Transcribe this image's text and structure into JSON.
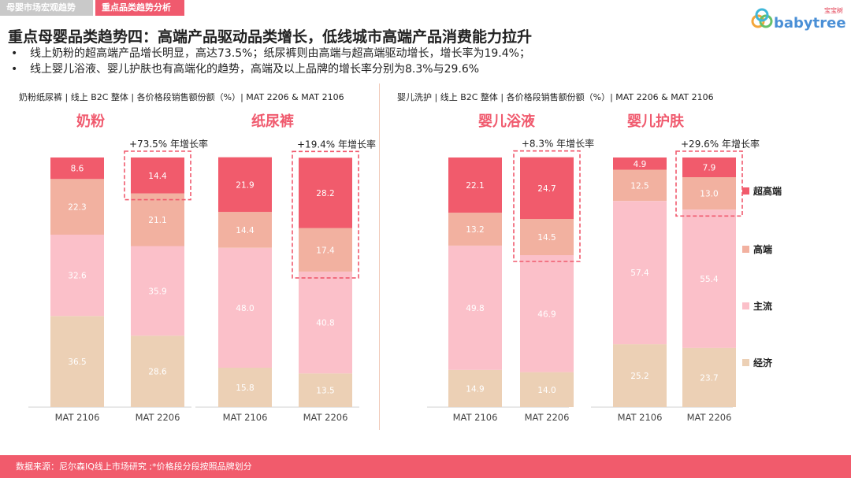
{
  "header": {
    "tabs": [
      {
        "label": "母婴市场宏观趋势",
        "active": false
      },
      {
        "label": "重点品类趋势分析",
        "active": true
      }
    ],
    "logo": {
      "text": "babytree",
      "small_text": "宝宝树"
    }
  },
  "title": "重点母婴品类趋势四：高端产品驱动品类增长，低线城市高端产品消费能力拉升",
  "bullets": [
    "线上奶粉的超高端产品增长明显，高达73.5%；纸尿裤则由高端与超高端驱动增长，增长率为19.4%；",
    "线上婴儿浴液、婴儿护肤也有高端化的趋势，高端及以上品牌的增长率分别为8.3%与29.6%"
  ],
  "bullet_symbol": "•",
  "panels": [
    {
      "title": "奶粉纸尿裤 | 线上 B2C 整体 | 各价格段销售额份额（%）| MAT 2206 & MAT 2106"
    },
    {
      "title": "婴儿洗护 | 线上 B2C 整体 | 各价格段销售额份额（%）| MAT 2206 & MAT 2106"
    }
  ],
  "colors": {
    "超高端": "#f15b6c",
    "高端": "#f2b1a0",
    "主流": "#fbc0c9",
    "经济": "#ecd0b5",
    "accent": "#f05a6e",
    "tab_inactive": "#c9c9c9"
  },
  "chart_data": [
    {
      "type": "bar",
      "stacked": true,
      "title": "奶粉",
      "categories": [
        "MAT 2106",
        "MAT 2206"
      ],
      "series": [
        {
          "name": "经济",
          "values": [
            36.5,
            28.6
          ]
        },
        {
          "name": "主流",
          "values": [
            32.6,
            35.9
          ]
        },
        {
          "name": "高端",
          "values": [
            22.3,
            21.1
          ]
        },
        {
          "name": "超高端",
          "values": [
            8.6,
            14.4
          ]
        }
      ],
      "annotation": "+73.5% 年增长率",
      "highlight": {
        "category": "MAT 2206",
        "series": [
          "超高端"
        ]
      }
    },
    {
      "type": "bar",
      "stacked": true,
      "title": "纸尿裤",
      "categories": [
        "MAT 2106",
        "MAT 2206"
      ],
      "series": [
        {
          "name": "经济",
          "values": [
            15.8,
            13.5
          ]
        },
        {
          "name": "主流",
          "values": [
            48.0,
            40.8
          ]
        },
        {
          "name": "高端",
          "values": [
            14.4,
            17.4
          ]
        },
        {
          "name": "超高端",
          "values": [
            21.9,
            28.2
          ]
        }
      ],
      "annotation": "+19.4% 年增长率",
      "highlight": {
        "category": "MAT 2206",
        "series": [
          "高端",
          "超高端"
        ]
      }
    },
    {
      "type": "bar",
      "stacked": true,
      "title": "婴儿浴液",
      "categories": [
        "MAT 2106",
        "MAT 2206"
      ],
      "series": [
        {
          "name": "经济",
          "values": [
            14.9,
            14.0
          ]
        },
        {
          "name": "主流",
          "values": [
            49.8,
            46.9
          ]
        },
        {
          "name": "高端",
          "values": [
            13.2,
            14.5
          ]
        },
        {
          "name": "超高端",
          "values": [
            22.1,
            24.7
          ]
        }
      ],
      "annotation": "+8.3% 年增长率",
      "highlight": {
        "category": "MAT 2206",
        "series": [
          "高端",
          "超高端"
        ]
      }
    },
    {
      "type": "bar",
      "stacked": true,
      "title": "婴儿护肤",
      "categories": [
        "MAT 2106",
        "MAT 2206"
      ],
      "series": [
        {
          "name": "经济",
          "values": [
            25.2,
            23.7
          ]
        },
        {
          "name": "主流",
          "values": [
            57.4,
            55.4
          ]
        },
        {
          "name": "高端",
          "values": [
            12.5,
            13.0
          ]
        },
        {
          "name": "超高端",
          "values": [
            4.9,
            7.9
          ]
        }
      ],
      "annotation": "+29.6% 年增长率",
      "highlight": {
        "category": "MAT 2206",
        "series": [
          "高端",
          "超高端"
        ]
      }
    }
  ],
  "legend": {
    "items": [
      "超高端",
      "高端",
      "主流",
      "经济"
    ],
    "placement": "right"
  },
  "footer": "数据来源：尼尔森IQ线上市场研究 ;*价格段分段按照品牌划分"
}
